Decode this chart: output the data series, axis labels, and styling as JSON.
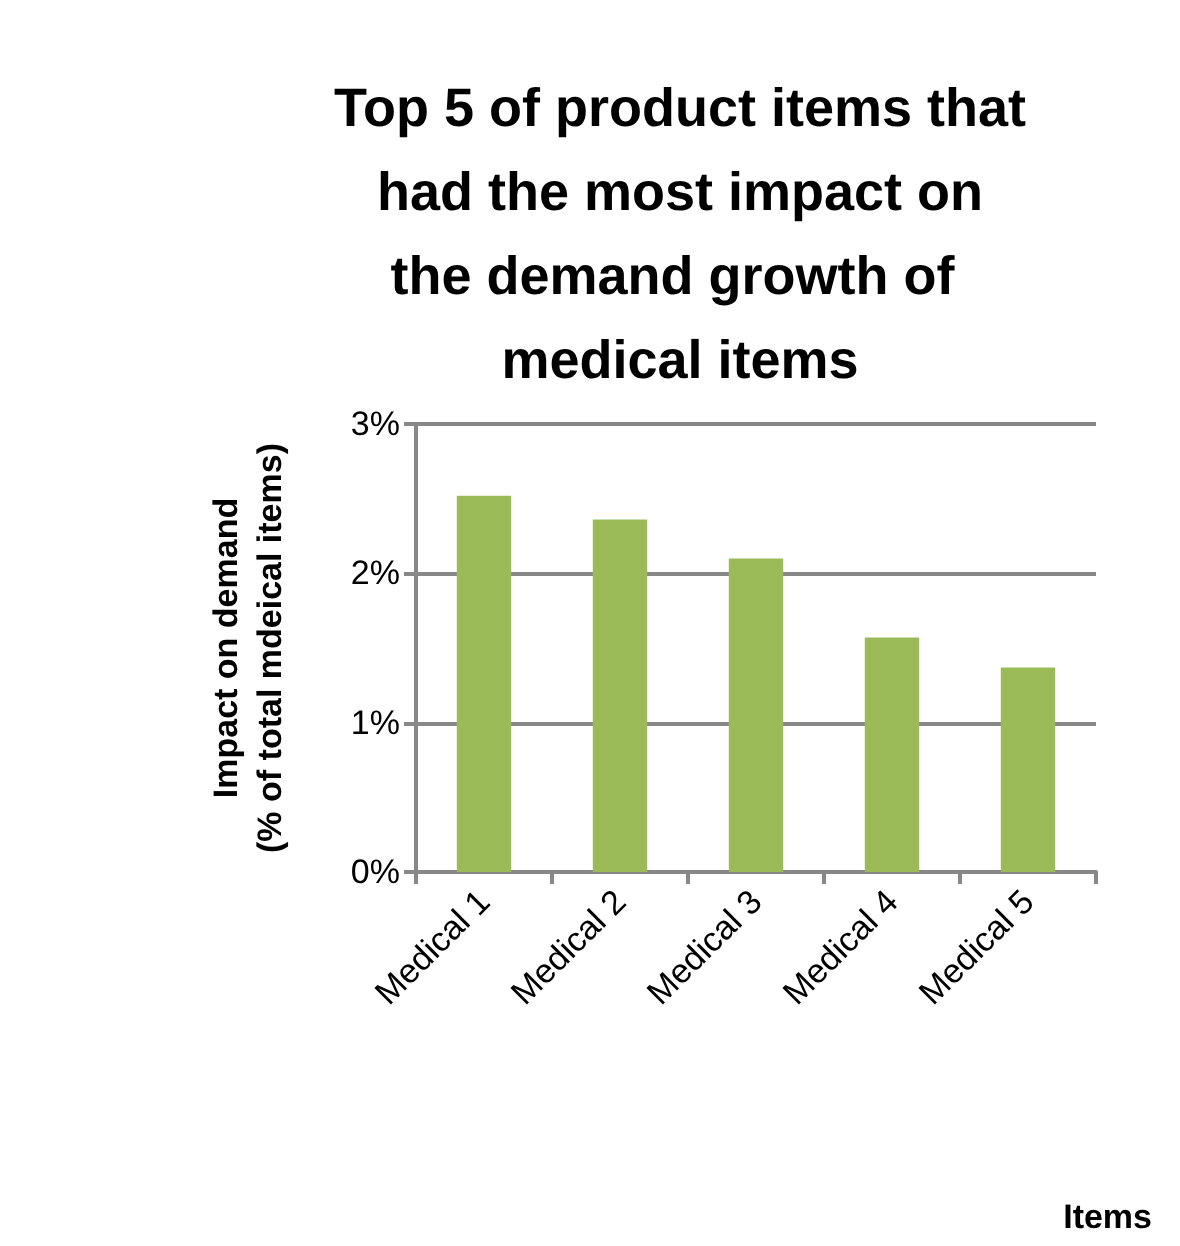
{
  "chart_data": {
    "type": "bar",
    "title": "Top 5 of product items that had the most impact on the demand growth of medical items",
    "ylabel": "Impact on demand\n(% of total mdeical items)",
    "annotations": [
      "Items"
    ],
    "categories": [
      "Medical 1",
      "Medical 2",
      "Medical 3",
      "Medical 4",
      "Medical 5"
    ],
    "values": [
      2.52,
      2.36,
      2.1,
      1.57,
      1.37
    ],
    "color": "#9bbb59",
    "ylim": [
      0,
      3
    ],
    "yticks": [
      {
        "value": 0,
        "label": "0%"
      },
      {
        "value": 1,
        "label": "1%"
      },
      {
        "value": 2,
        "label": "2%"
      },
      {
        "value": 3,
        "label": "3%"
      }
    ],
    "grid": "y"
  }
}
